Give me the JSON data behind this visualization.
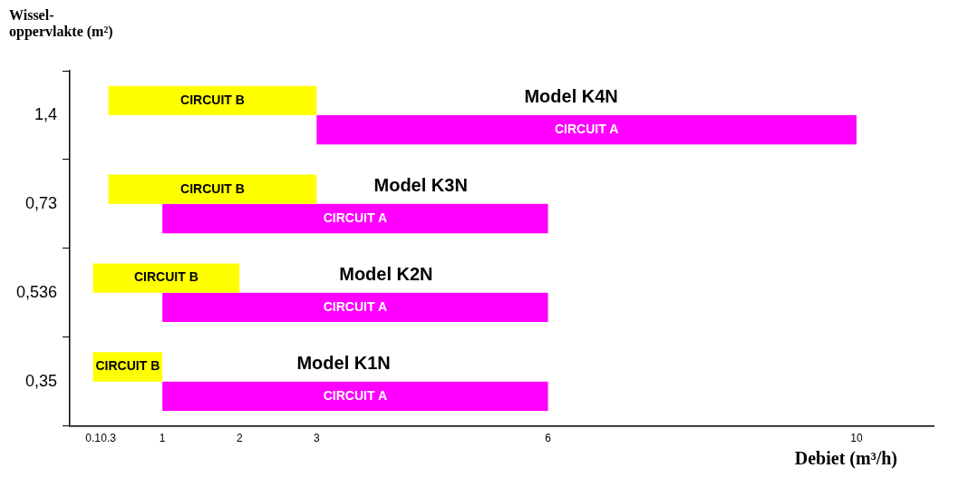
{
  "chart_data": {
    "type": "bar",
    "orientation": "horizontal",
    "ylabel": "Wissel- oppervlakte (m²)",
    "xlabel": "Debiet (m³/h)",
    "categories": [
      "1,4",
      "0,73",
      "0,536",
      "0,35"
    ],
    "xlim": [
      -0.2,
      11
    ],
    "xticks": [
      0.1,
      0.3,
      1,
      2,
      3,
      6,
      10
    ],
    "series": [
      {
        "name": "CIRCUIT B",
        "color": "#ffff00",
        "base": [
          0.3,
          0.3,
          0.1,
          0.1
        ],
        "values": [
          2.7,
          2.7,
          1.9,
          0.9
        ]
      },
      {
        "name": "CIRCUIT A",
        "color": "#ff00ff",
        "base": [
          3,
          1,
          1,
          1
        ],
        "values": [
          7,
          5,
          5,
          5
        ]
      }
    ],
    "annotations": [
      {
        "text": "Model K4N",
        "x": 6.3,
        "y": "1,4"
      },
      {
        "text": "Model K3N",
        "x": 4.35,
        "y": "0,73"
      },
      {
        "text": "Model K2N",
        "x": 3.9,
        "y": "0,536"
      },
      {
        "text": "Model K1N",
        "x": 3.35,
        "y": "0,35"
      }
    ]
  }
}
